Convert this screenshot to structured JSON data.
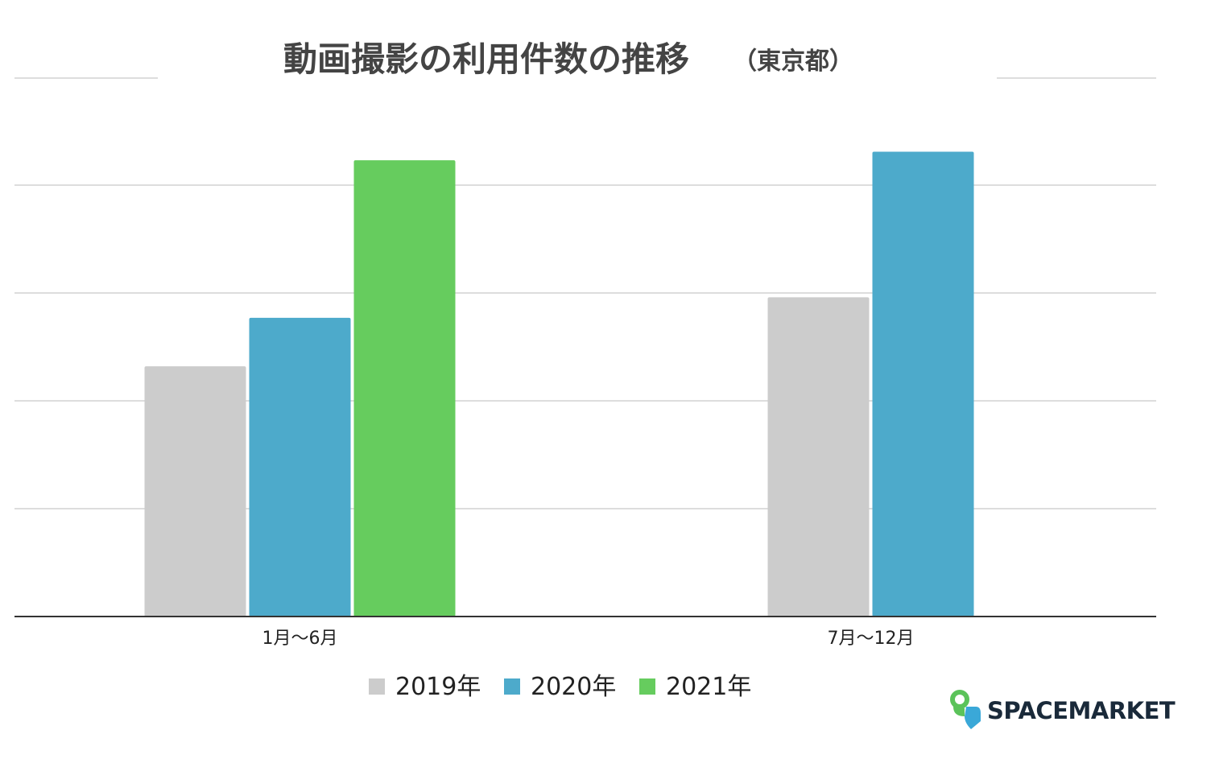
{
  "chart_data": {
    "type": "bar",
    "title": "動画撮影の利用件数の推移",
    "subtitle": "（東京都）",
    "xlabel": "",
    "ylabel": "",
    "categories": [
      "1月〜6月",
      "7月〜12月"
    ],
    "series": [
      {
        "name": "2019年",
        "values": [
          232,
          296
        ],
        "color": "#cccccc"
      },
      {
        "name": "2020年",
        "values": [
          277,
          431
        ],
        "color": "#4daacb"
      },
      {
        "name": "2021年",
        "values": [
          423,
          null
        ],
        "color": "#66cc5e"
      }
    ],
    "ylim": [
      0,
      500
    ],
    "gridlines": [
      100,
      200,
      300,
      400
    ],
    "ytick_labels_shown": false,
    "grid": true,
    "legend_position": "bottom"
  },
  "logo": {
    "text": "SPACEMARKET",
    "colors": {
      "green": "#5bc35a",
      "blue": "#3aa8d8"
    }
  }
}
